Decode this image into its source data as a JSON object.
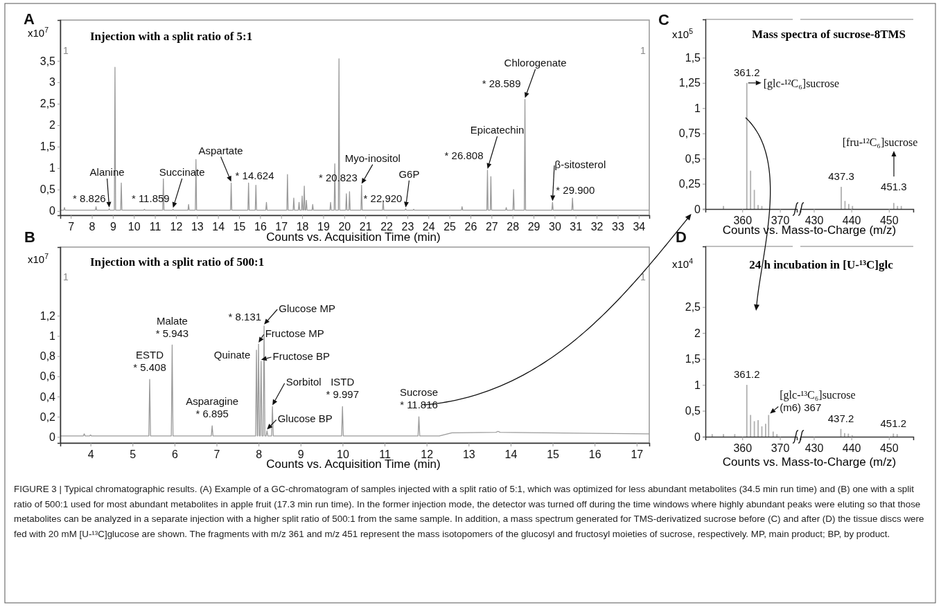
{
  "chart_data": [
    {
      "type": "line",
      "title": "Injection with a split ratio of 5:1",
      "xlabel": "Counts vs. Acquisition Time (min)",
      "ylabel": "x10$^{7}$",
      "color": "#9a9a9a",
      "x": [
        6.5,
        6.67,
        6.7,
        6.73,
        8.17,
        8.2,
        8.23,
        8.796,
        8.826,
        8.856,
        9.07,
        9.1,
        9.13,
        9.37,
        9.4,
        9.43,
        10.47,
        10.5,
        10.53,
        11.37,
        11.4,
        11.43,
        11.829,
        11.859,
        11.889,
        12.57,
        12.6,
        12.63,
        12.92,
        12.95,
        12.98,
        14.594,
        14.624,
        14.654,
        15.42,
        15.45,
        15.48,
        15.77,
        15.8,
        15.83,
        16.27,
        16.3,
        16.33,
        17.27,
        17.3,
        17.33,
        17.57,
        17.6,
        17.63,
        17.82,
        17.85,
        17.88,
        17.97,
        18.0,
        18.03,
        18.07,
        18.1,
        18.13,
        18.17,
        18.2,
        18.23,
        18.47,
        18.5,
        18.53,
        19.32,
        19.35,
        19.38,
        19.52,
        19.55,
        19.58,
        19.72,
        19.75,
        19.78,
        20.07,
        20.1,
        20.13,
        20.22,
        20.25,
        20.28,
        20.793,
        20.823,
        20.853,
        21.82,
        21.85,
        21.88,
        22.89,
        22.92,
        22.95,
        23.27,
        23.3,
        23.33,
        25.57,
        25.6,
        25.63,
        26.778,
        26.808,
        26.838,
        26.94,
        26.97,
        27.0,
        27.67,
        27.7,
        27.73,
        28.02,
        28.05,
        28.08,
        28.559,
        28.589,
        28.619,
        29.87,
        29.9,
        29.93,
        30.82,
        30.85,
        30.88,
        34.5
      ],
      "values": [
        0.02,
        0.02,
        0.08,
        0.02,
        0.02,
        0.1,
        0.02,
        0.02,
        0.05,
        0.02,
        0.02,
        3.35,
        0.02,
        0.02,
        0.65,
        0.02,
        0.02,
        0.04,
        0.02,
        0.02,
        0.75,
        0.02,
        0.02,
        0.04,
        0.02,
        0.02,
        0.15,
        0.02,
        0.02,
        1.2,
        0.02,
        0.02,
        0.65,
        0.02,
        0.02,
        0.65,
        0.02,
        0.02,
        0.6,
        0.02,
        0.02,
        0.2,
        0.02,
        0.02,
        0.85,
        0.02,
        0.02,
        0.3,
        0.02,
        0.02,
        0.2,
        0.02,
        0.02,
        0.35,
        0.02,
        0.02,
        0.58,
        0.02,
        0.02,
        0.25,
        0.02,
        0.02,
        0.15,
        0.02,
        0.02,
        0.2,
        0.02,
        0.02,
        1.1,
        0.02,
        0.02,
        3.55,
        0.02,
        0.02,
        0.4,
        0.02,
        0.02,
        0.45,
        0.02,
        0.02,
        0.6,
        0.02,
        0.02,
        0.25,
        0.02,
        0.02,
        0.05,
        0.02,
        0.02,
        0.04,
        0.02,
        0.02,
        0.1,
        0.02,
        0.02,
        0.95,
        0.02,
        0.02,
        0.8,
        0.02,
        0.02,
        0.08,
        0.02,
        0.02,
        0.5,
        0.02,
        0.02,
        2.6,
        0.02,
        0.02,
        0.2,
        0.02,
        0.02,
        0.3,
        0.02,
        0.02
      ],
      "xlim": [
        6.5,
        34.5
      ],
      "ylim": [
        -0.1,
        4.45
      ],
      "xticks": [
        7,
        8,
        9,
        10,
        11,
        12,
        13,
        14,
        15,
        16,
        17,
        18,
        19,
        20,
        21,
        22,
        23,
        24,
        25,
        26,
        27,
        28,
        29,
        30,
        31,
        32,
        33,
        34
      ],
      "yticks": [
        0,
        {
          "value": 0.5,
          "label": "0,5"
        },
        1,
        {
          "value": 1.5,
          "label": "1,5"
        },
        2,
        {
          "value": 2.5,
          "label": "2,5"
        },
        3,
        {
          "value": 3.5,
          "label": "3,5"
        }
      ],
      "annotations": [
        "A",
        "1",
        "1",
        "Alanine",
        {
          "text": "* 8.826",
          "x": 8.826,
          "y": 0.05
        },
        "Succinate",
        {
          "text": "* 11.859",
          "x": 11.859,
          "y": 0.04
        },
        {
          "text": "Aspartate",
          "x": 14.624,
          "y": 0.65
        },
        {
          "text": "* 14.624",
          "x": 14.624,
          "y": 0.65
        },
        {
          "text": "Myo-inositol",
          "x": 20.823,
          "y": 0.6
        },
        {
          "text": "* 20.823",
          "x": 20.823,
          "y": 0.6
        },
        {
          "text": "G6P",
          "x": 22.92,
          "y": 0.05
        },
        {
          "text": "* 22.920",
          "x": 22.92,
          "y": 0.05
        },
        "Epicatechin",
        {
          "text": "* 26.808",
          "x": 26.808,
          "y": 0.95
        },
        "Chlorogenate",
        {
          "text": "* 28.589",
          "x": 28.589,
          "y": 2.6
        },
        "β-sitosterol",
        {
          "text": "* 29.900",
          "x": 29.9,
          "y": 0.2
        },
        "FIGURE 3 | Typical chromatographic results. (A) Example of a GC-chromatogram of samples injected with a split ratio of 5:1, which was optimized for less abundant metabolites (34.5 min run time) and (B) one with a split ratio of 500:1 used for most abundant metabolites in apple fruit (17.3 min run time). In the former injection mode, the detector was turned off during the time windows where highly abundant peaks were eluting so that those metabolites can be analyzed in a separate injection with a higher split ratio of 500:1 from the same sample. In addition, a mass spectrum generated for TMS-derivatized sucrose before (C) and after (D) the tissue discs were fed with 20 mM [U-¹³C]glucose are shown. The fragments with m/z 361 and m/z 451 represent the mass isotopomers of the glucosyl and fructosyl moieties of sucrose, respectively. MP, main product; BP, by product."
      ]
    },
    {
      "type": "line",
      "title": "Injection with a split ratio of 500:1",
      "xlabel": "Counts vs. Acquisition Time (min)",
      "ylabel": "x10$^{7}$",
      "color": "#9a9a9a",
      "x": [
        3.28,
        3.83,
        3.85,
        3.87,
        3.98,
        4.0,
        4.02,
        5.388,
        5.408,
        5.428,
        5.923,
        5.943,
        5.963,
        6.875,
        6.895,
        6.915,
        7.93,
        7.95,
        7.97,
        7.98,
        8.0,
        8.02,
        8.04,
        8.06,
        8.08,
        8.111,
        8.131,
        8.151,
        8.18,
        8.2,
        8.22,
        8.31,
        8.33,
        8.35,
        9.977,
        9.997,
        10.017,
        11.796,
        11.816,
        11.836,
        12.3,
        12.6,
        13.65,
        13.7,
        13.75,
        17.3
      ],
      "values": [
        0.01,
        0.01,
        0.03,
        0.01,
        0.01,
        0.02,
        0.01,
        0.01,
        0.57,
        0.01,
        0.01,
        0.91,
        0.01,
        0.01,
        0.11,
        0.01,
        0.01,
        0.86,
        0.01,
        0.01,
        0.92,
        0.01,
        0.01,
        0.75,
        0.01,
        0.01,
        1.1,
        0.01,
        0.01,
        0.06,
        0.01,
        0.01,
        0.3,
        0.01,
        0.01,
        0.3,
        0.01,
        0.01,
        0.2,
        0.01,
        0.01,
        0.04,
        0.045,
        0.055,
        0.045,
        0.03
      ],
      "xlim": [
        3.28,
        17.3
      ],
      "ylim": [
        -0.06,
        1.88
      ],
      "xticks": [
        4,
        5,
        6,
        7,
        8,
        9,
        10,
        11,
        12,
        13,
        14,
        15,
        16,
        17
      ],
      "yticks": [
        0,
        {
          "value": 0.2,
          "label": "0,2"
        },
        {
          "value": 0.4,
          "label": "0,4"
        },
        {
          "value": 0.6,
          "label": "0,6"
        },
        {
          "value": 0.8,
          "label": "0,8"
        },
        1,
        {
          "value": 1.2,
          "label": "1,2"
        }
      ],
      "annotations": [
        "B",
        "1",
        "1",
        {
          "text": "ESTD",
          "x": 5.408,
          "y": 0.57
        },
        {
          "text": "* 5.408",
          "x": 5.408,
          "y": 0.57
        },
        {
          "text": "Malate",
          "x": 5.943,
          "y": 0.91
        },
        {
          "text": "* 5.943",
          "x": 5.943,
          "y": 0.91
        },
        {
          "text": "Asparagine",
          "x": 6.895,
          "y": 0.11
        },
        {
          "text": "* 6.895",
          "x": 6.895,
          "y": 0.11
        },
        {
          "text": "Quinate",
          "x": 7.95,
          "y": 0.86
        },
        {
          "text": "* 8.131",
          "x": 8.131,
          "y": 1.1
        },
        {
          "text": "Glucose MP",
          "x": 8.131,
          "y": 1.1
        },
        {
          "text": "Fructose MP",
          "x": 8.0,
          "y": 0.92
        },
        {
          "text": "Fructose BP",
          "x": 8.06,
          "y": 0.75
        },
        {
          "text": "Sorbitol",
          "x": 8.33,
          "y": 0.3
        },
        {
          "text": "Glucose BP",
          "x": 8.2,
          "y": 0.06
        },
        {
          "text": "ISTD",
          "x": 9.997,
          "y": 0.3
        },
        {
          "text": "* 9.997",
          "x": 9.997,
          "y": 0.3
        },
        {
          "text": "Sucrose",
          "x": 11.816,
          "y": 0.2
        },
        {
          "text": "* 11.816",
          "x": 11.816,
          "y": 0.2
        }
      ]
    },
    {
      "type": "bar",
      "title": "Mass spectra of sucrose-8TMS",
      "xlabel": "Counts vs. Mass-to-Charge (m/z)",
      "ylabel": "x10$^{5}$",
      "color": "#b0b0b0",
      "x": [
        355,
        361.2,
        362.2,
        363.2,
        364.2,
        365.2
      ],
      "values": [
        0.03,
        1.25,
        0.38,
        0.19,
        0.04,
        0.03
      ],
      "xlim": [
        350.2,
        374.5
      ],
      "ylim": [
        0,
        1.88
      ],
      "xticks": [
        360,
        370
      ],
      "yticks": [
        0,
        {
          "value": 0.25,
          "label": "0,25"
        },
        {
          "value": 0.5,
          "label": "0,5"
        },
        {
          "value": 0.75,
          "label": "0,75"
        },
        1,
        {
          "value": 1.25,
          "label": "1,25"
        },
        {
          "value": 1.5,
          "label": "1,5"
        }
      ],
      "annotations": [
        "C",
        {
          "text": "361.2",
          "x": 361.2,
          "y": 1.25
        },
        {
          "text": "[glc-¹²C₆]sucrose",
          "x": 361.2,
          "y": 1.25
        }
      ]
    },
    {
      "type": "bar",
      "color": "#b0b0b0",
      "tick_labels": "x",
      "x": [
        437.3,
        438.3,
        439.3,
        440.3,
        451.3,
        452.3,
        453.3
      ],
      "values": [
        0.22,
        0.08,
        0.05,
        0.03,
        0.06,
        0.03,
        0.03
      ],
      "xlim": [
        426.4,
        456.5
      ],
      "ylim": [
        0,
        1.88
      ],
      "xticks": [
        430,
        440,
        450
      ],
      "annotations": [
        {
          "text": "437.3",
          "x": 437.3,
          "y": 0.22
        },
        {
          "text": "451.3",
          "x": 451.3,
          "y": 0.06
        },
        "[fru-¹²C₆]sucrose"
      ]
    },
    {
      "type": "bar",
      "title": "24 h incubation in [U-¹³C]glc",
      "xlabel": "Counts vs. Mass-to-Charge (m/z)",
      "ylabel": "x10$^{4}$",
      "color": "#b0b0b0",
      "x": [
        352,
        355,
        358,
        361.2,
        362.2,
        363.2,
        364.2,
        365.2,
        366.2,
        367,
        368.2,
        369.2
      ],
      "values": [
        0.05,
        0.05,
        0.05,
        1.0,
        0.42,
        0.3,
        0.32,
        0.2,
        0.25,
        0.42,
        0.1,
        0.05
      ],
      "xlim": [
        350.2,
        374.5
      ],
      "ylim": [
        0,
        3.67
      ],
      "xticks": [
        360,
        370
      ],
      "yticks": [
        0,
        {
          "value": 0.5,
          "label": "0,5"
        },
        1,
        {
          "value": 1.5,
          "label": "1,5"
        },
        2,
        {
          "value": 2.5,
          "label": "2,5"
        }
      ],
      "annotations": [
        "D",
        {
          "text": "361.2",
          "x": 361.2,
          "y": 1.0
        },
        {
          "text": "[glc-¹³C₆]sucrose",
          "x": 367,
          "y": 0.42
        },
        {
          "text": "(m6) 367",
          "x": 367,
          "y": 0.42
        }
      ]
    },
    {
      "type": "bar",
      "color": "#b0b0b0",
      "tick_labels": "x",
      "x": [
        437.2,
        438.2,
        439.2,
        440.2,
        451.2,
        452.2
      ],
      "values": [
        0.15,
        0.07,
        0.06,
        0.03,
        0.06,
        0.05
      ],
      "xlim": [
        426.4,
        456.5
      ],
      "ylim": [
        0,
        3.67
      ],
      "xticks": [
        430,
        440,
        450
      ],
      "annotations": [
        {
          "text": "437.2",
          "x": 437.2,
          "y": 0.15
        },
        {
          "text": "451.2",
          "x": 451.2,
          "y": 0.06
        }
      ]
    }
  ]
}
